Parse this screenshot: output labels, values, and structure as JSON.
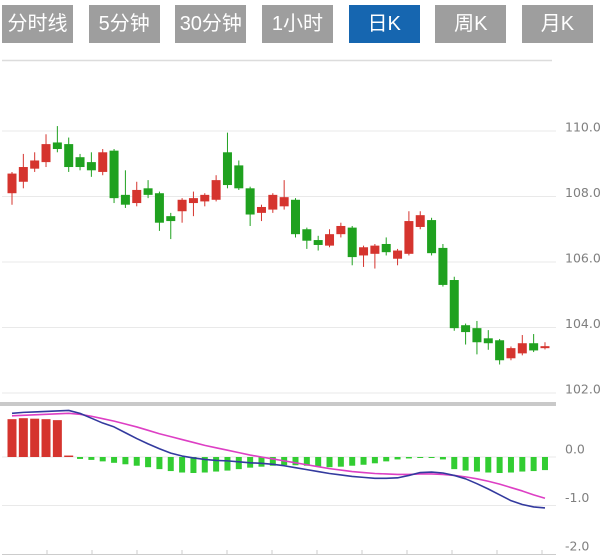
{
  "tabs": {
    "active_index": 4,
    "items": [
      {
        "label": "分时线"
      },
      {
        "label": "5分钟"
      },
      {
        "label": "30分钟"
      },
      {
        "label": "1小时"
      },
      {
        "label": "日K"
      },
      {
        "label": "周K"
      },
      {
        "label": "月K"
      }
    ]
  },
  "colors": {
    "tab_bg": "#9e9e9e",
    "tab_active_bg": "#1666b0",
    "tab_text": "#ffffff",
    "up": "#d5342e",
    "down": "#1fa11f",
    "macd_hist_up": "#d5342e",
    "macd_hist_down": "#32cd32",
    "dif_line": "#333a9e",
    "dea_line": "#dd3fc4",
    "grid": "#e9e9e9",
    "top_border": "#dcdcdc",
    "separator": "#c9c9c9",
    "axis_line": "#cccccc",
    "axis_label": "#7f7f7f"
  },
  "chart_data": {
    "type": "candlestick",
    "timeframe_selected": "日K",
    "grid": true,
    "y_axis": {
      "position": "right",
      "ticks": [
        "110.0",
        "108.0",
        "106.0",
        "104.0",
        "102.0"
      ],
      "values": [
        110,
        108,
        106,
        104,
        102
      ],
      "range": [
        101.7,
        112.2
      ]
    },
    "candles": [
      {
        "o": 108.1,
        "h": 108.75,
        "l": 107.75,
        "c": 108.7
      },
      {
        "o": 108.45,
        "h": 109.3,
        "l": 108.25,
        "c": 108.9
      },
      {
        "o": 108.85,
        "h": 109.35,
        "l": 108.75,
        "c": 109.1
      },
      {
        "o": 109.05,
        "h": 109.9,
        "l": 108.9,
        "c": 109.6
      },
      {
        "o": 109.65,
        "h": 110.15,
        "l": 109.35,
        "c": 109.45
      },
      {
        "o": 109.6,
        "h": 109.8,
        "l": 108.75,
        "c": 108.9
      },
      {
        "o": 109.2,
        "h": 109.3,
        "l": 108.8,
        "c": 108.9
      },
      {
        "o": 109.05,
        "h": 109.35,
        "l": 108.6,
        "c": 108.8
      },
      {
        "o": 108.75,
        "h": 109.45,
        "l": 108.65,
        "c": 109.35
      },
      {
        "o": 109.4,
        "h": 109.45,
        "l": 107.8,
        "c": 107.95
      },
      {
        "o": 108.05,
        "h": 108.8,
        "l": 107.65,
        "c": 107.75
      },
      {
        "o": 107.8,
        "h": 108.45,
        "l": 107.7,
        "c": 108.2
      },
      {
        "o": 108.25,
        "h": 108.5,
        "l": 107.95,
        "c": 108.05
      },
      {
        "o": 108.1,
        "h": 108.15,
        "l": 106.95,
        "c": 107.2
      },
      {
        "o": 107.4,
        "h": 107.5,
        "l": 106.7,
        "c": 107.25
      },
      {
        "o": 107.55,
        "h": 107.95,
        "l": 107.2,
        "c": 107.9
      },
      {
        "o": 107.8,
        "h": 108.15,
        "l": 107.4,
        "c": 107.95
      },
      {
        "o": 107.85,
        "h": 108.1,
        "l": 107.7,
        "c": 108.05
      },
      {
        "o": 107.9,
        "h": 108.65,
        "l": 107.85,
        "c": 108.5
      },
      {
        "o": 109.35,
        "h": 109.95,
        "l": 108.25,
        "c": 108.35
      },
      {
        "o": 108.95,
        "h": 109.1,
        "l": 108.2,
        "c": 108.25
      },
      {
        "o": 108.25,
        "h": 108.3,
        "l": 107.1,
        "c": 107.45
      },
      {
        "o": 107.5,
        "h": 107.75,
        "l": 107.25,
        "c": 107.68
      },
      {
        "o": 107.6,
        "h": 108.1,
        "l": 107.5,
        "c": 108.05
      },
      {
        "o": 107.7,
        "h": 108.5,
        "l": 107.6,
        "c": 107.98
      },
      {
        "o": 107.9,
        "h": 107.95,
        "l": 106.75,
        "c": 106.85
      },
      {
        "o": 107.0,
        "h": 107.05,
        "l": 106.4,
        "c": 106.65
      },
      {
        "o": 106.67,
        "h": 106.8,
        "l": 106.35,
        "c": 106.52
      },
      {
        "o": 106.5,
        "h": 107.0,
        "l": 106.45,
        "c": 106.85
      },
      {
        "o": 106.85,
        "h": 107.2,
        "l": 106.75,
        "c": 107.1
      },
      {
        "o": 107.05,
        "h": 107.1,
        "l": 105.9,
        "c": 106.15
      },
      {
        "o": 106.2,
        "h": 106.5,
        "l": 105.85,
        "c": 106.45
      },
      {
        "o": 106.25,
        "h": 106.55,
        "l": 105.8,
        "c": 106.5
      },
      {
        "o": 106.55,
        "h": 106.75,
        "l": 106.2,
        "c": 106.3
      },
      {
        "o": 106.1,
        "h": 106.4,
        "l": 105.9,
        "c": 106.35
      },
      {
        "o": 106.25,
        "h": 107.55,
        "l": 106.2,
        "c": 107.25
      },
      {
        "o": 107.07,
        "h": 107.55,
        "l": 107.0,
        "c": 107.43
      },
      {
        "o": 107.28,
        "h": 107.35,
        "l": 106.2,
        "c": 106.27
      },
      {
        "o": 106.43,
        "h": 106.55,
        "l": 105.25,
        "c": 105.3
      },
      {
        "o": 105.45,
        "h": 105.55,
        "l": 103.9,
        "c": 103.98
      },
      {
        "o": 104.07,
        "h": 104.12,
        "l": 103.48,
        "c": 103.86
      },
      {
        "o": 103.98,
        "h": 104.2,
        "l": 103.18,
        "c": 103.55
      },
      {
        "o": 103.67,
        "h": 103.92,
        "l": 103.32,
        "c": 103.52
      },
      {
        "o": 103.61,
        "h": 103.65,
        "l": 102.87,
        "c": 103.0
      },
      {
        "o": 103.06,
        "h": 103.42,
        "l": 103.0,
        "c": 103.37
      },
      {
        "o": 103.21,
        "h": 103.77,
        "l": 103.15,
        "c": 103.52
      },
      {
        "o": 103.52,
        "h": 103.8,
        "l": 103.25,
        "c": 103.3
      },
      {
        "o": 103.37,
        "h": 103.55,
        "l": 103.33,
        "c": 103.43
      }
    ],
    "indicator": {
      "type": "MACD",
      "y_axis": {
        "position": "right",
        "ticks": [
          "0.0",
          "-1.0",
          "-2.0"
        ],
        "values": [
          0,
          -1,
          -2
        ],
        "range": [
          -2.05,
          1.0
        ]
      },
      "histogram": [
        0.78,
        0.8,
        0.79,
        0.78,
        0.76,
        0.03,
        -0.04,
        -0.06,
        -0.09,
        -0.12,
        -0.15,
        -0.18,
        -0.21,
        -0.25,
        -0.29,
        -0.32,
        -0.33,
        -0.32,
        -0.3,
        -0.28,
        -0.25,
        -0.22,
        -0.2,
        -0.18,
        -0.17,
        -0.17,
        -0.18,
        -0.2,
        -0.21,
        -0.2,
        -0.18,
        -0.16,
        -0.13,
        -0.09,
        -0.05,
        -0.03,
        -0.02,
        -0.01,
        -0.05,
        -0.25,
        -0.28,
        -0.3,
        -0.32,
        -0.33,
        -0.32,
        -0.3,
        -0.29,
        -0.27
      ],
      "dif": [
        0.9,
        0.92,
        0.93,
        0.94,
        0.95,
        0.96,
        0.9,
        0.8,
        0.7,
        0.62,
        0.5,
        0.38,
        0.27,
        0.17,
        0.08,
        0.02,
        -0.02,
        -0.05,
        -0.07,
        -0.08,
        -0.1,
        -0.12,
        -0.13,
        -0.15,
        -0.18,
        -0.22,
        -0.26,
        -0.3,
        -0.34,
        -0.37,
        -0.4,
        -0.42,
        -0.44,
        -0.44,
        -0.43,
        -0.38,
        -0.32,
        -0.31,
        -0.33,
        -0.38,
        -0.45,
        -0.55,
        -0.66,
        -0.78,
        -0.9,
        -0.98,
        -1.03,
        -1.05
      ],
      "dea": [
        0.85,
        0.86,
        0.87,
        0.88,
        0.89,
        0.9,
        0.88,
        0.84,
        0.79,
        0.74,
        0.68,
        0.62,
        0.55,
        0.48,
        0.42,
        0.36,
        0.3,
        0.24,
        0.19,
        0.14,
        0.09,
        0.04,
        0.0,
        -0.04,
        -0.08,
        -0.12,
        -0.16,
        -0.2,
        -0.24,
        -0.27,
        -0.3,
        -0.32,
        -0.34,
        -0.35,
        -0.36,
        -0.36,
        -0.35,
        -0.35,
        -0.36,
        -0.38,
        -0.41,
        -0.45,
        -0.5,
        -0.56,
        -0.63,
        -0.7,
        -0.78,
        -0.85
      ]
    }
  }
}
